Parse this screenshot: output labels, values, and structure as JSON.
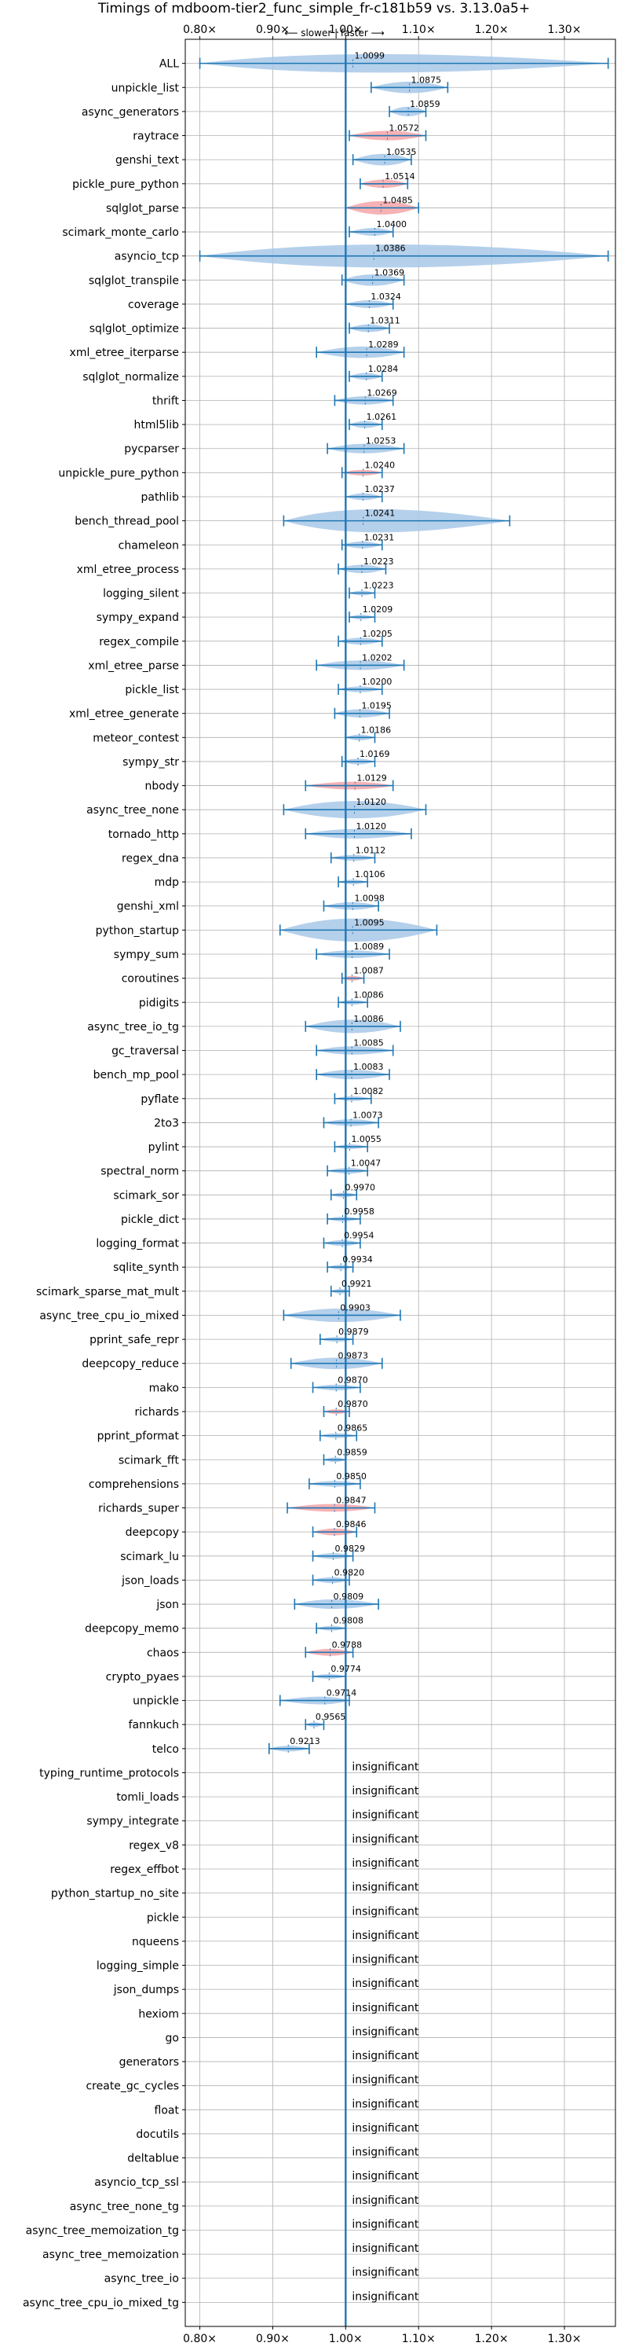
{
  "chart_data": {
    "type": "violin",
    "title": "Timings of mdboom-tier2_func_simple_fr-c181b59 vs. 3.13.0a5+",
    "direction_note": "⟵ slower | faster ⟶",
    "xlim": [
      0.78,
      1.37
    ],
    "x_ticks": [
      0.8,
      0.9,
      1.0,
      1.1,
      1.2,
      1.3
    ],
    "x_tick_labels": [
      "0.80×",
      "0.90×",
      "1.00×",
      "1.10×",
      "1.20×",
      "1.30×"
    ],
    "reference_line": 1.0,
    "grid": true,
    "colors": {
      "faster": "#a8c8e8",
      "slower": "#f4a4a8",
      "line": "#1f77b4",
      "grid": "#b0b0b0"
    },
    "insignificant_text": "insignificant",
    "benchmarks": [
      {
        "name": "ALL",
        "label": "1.0099",
        "value": 1.0099,
        "min": 0.8,
        "max": 1.36,
        "width": 0.048,
        "color": "faster"
      },
      {
        "name": "unpickle_list",
        "label": "1.0875",
        "value": 1.0875,
        "min": 1.035,
        "max": 1.14,
        "width": 0.03,
        "color": "faster"
      },
      {
        "name": "async_generators",
        "label": "1.0859",
        "value": 1.0859,
        "min": 1.06,
        "max": 1.11,
        "width": 0.025,
        "color": "faster"
      },
      {
        "name": "raytrace",
        "label": "1.0572",
        "value": 1.0572,
        "min": 1.005,
        "max": 1.11,
        "width": 0.025,
        "color": "slower"
      },
      {
        "name": "genshi_text",
        "label": "1.0535",
        "value": 1.0535,
        "min": 1.01,
        "max": 1.09,
        "width": 0.03,
        "color": "faster"
      },
      {
        "name": "pickle_pure_python",
        "label": "1.0514",
        "value": 1.0514,
        "min": 1.02,
        "max": 1.085,
        "width": 0.022,
        "color": "slower"
      },
      {
        "name": "sqlglot_parse",
        "label": "1.0485",
        "value": 1.0485,
        "min": 1.0,
        "max": 1.1,
        "width": 0.035,
        "color": "slower"
      },
      {
        "name": "scimark_monte_carlo",
        "label": "1.0400",
        "value": 1.04,
        "min": 1.005,
        "max": 1.065,
        "width": 0.02,
        "color": "faster"
      },
      {
        "name": "asyncio_tcp",
        "label": "1.0386",
        "value": 1.0386,
        "min": 0.8,
        "max": 1.36,
        "width": 0.13,
        "color": "faster"
      },
      {
        "name": "sqlglot_transpile",
        "label": "1.0369",
        "value": 1.0369,
        "min": 0.995,
        "max": 1.08,
        "width": 0.03,
        "color": "faster"
      },
      {
        "name": "coverage",
        "label": "1.0324",
        "value": 1.0324,
        "min": 1.0,
        "max": 1.065,
        "width": 0.02,
        "color": "faster"
      },
      {
        "name": "sqlglot_optimize",
        "label": "1.0311",
        "value": 1.0311,
        "min": 1.005,
        "max": 1.06,
        "width": 0.02,
        "color": "faster"
      },
      {
        "name": "xml_etree_iterparse",
        "label": "1.0289",
        "value": 1.0289,
        "min": 0.96,
        "max": 1.08,
        "width": 0.03,
        "color": "faster"
      },
      {
        "name": "sqlglot_normalize",
        "label": "1.0284",
        "value": 1.0284,
        "min": 1.005,
        "max": 1.05,
        "width": 0.018,
        "color": "faster"
      },
      {
        "name": "thrift",
        "label": "1.0269",
        "value": 1.0269,
        "min": 0.985,
        "max": 1.065,
        "width": 0.022,
        "color": "faster"
      },
      {
        "name": "html5lib",
        "label": "1.0261",
        "value": 1.0261,
        "min": 1.005,
        "max": 1.05,
        "width": 0.018,
        "color": "faster"
      },
      {
        "name": "pycparser",
        "label": "1.0253",
        "value": 1.0253,
        "min": 0.975,
        "max": 1.08,
        "width": 0.025,
        "color": "faster"
      },
      {
        "name": "unpickle_pure_python",
        "label": "1.0240",
        "value": 1.024,
        "min": 0.995,
        "max": 1.05,
        "width": 0.015,
        "color": "slower"
      },
      {
        "name": "pathlib",
        "label": "1.0237",
        "value": 1.0237,
        "min": 1.0,
        "max": 1.05,
        "width": 0.018,
        "color": "faster"
      },
      {
        "name": "bench_thread_pool",
        "label": "1.0241",
        "value": 1.0241,
        "min": 0.915,
        "max": 1.225,
        "width": 0.06,
        "color": "faster"
      },
      {
        "name": "chameleon",
        "label": "1.0231",
        "value": 1.0231,
        "min": 0.995,
        "max": 1.05,
        "width": 0.018,
        "color": "faster"
      },
      {
        "name": "xml_etree_process",
        "label": "1.0223",
        "value": 1.0223,
        "min": 0.99,
        "max": 1.055,
        "width": 0.022,
        "color": "faster"
      },
      {
        "name": "logging_silent",
        "label": "1.0223",
        "value": 1.0223,
        "min": 1.005,
        "max": 1.04,
        "width": 0.012,
        "color": "faster"
      },
      {
        "name": "sympy_expand",
        "label": "1.0209",
        "value": 1.0209,
        "min": 1.005,
        "max": 1.04,
        "width": 0.012,
        "color": "faster"
      },
      {
        "name": "regex_compile",
        "label": "1.0205",
        "value": 1.0205,
        "min": 0.99,
        "max": 1.05,
        "width": 0.018,
        "color": "faster"
      },
      {
        "name": "xml_etree_parse",
        "label": "1.0202",
        "value": 1.0202,
        "min": 0.96,
        "max": 1.08,
        "width": 0.025,
        "color": "faster"
      },
      {
        "name": "pickle_list",
        "label": "1.0200",
        "value": 1.02,
        "min": 0.99,
        "max": 1.05,
        "width": 0.015,
        "color": "faster"
      },
      {
        "name": "xml_etree_generate",
        "label": "1.0195",
        "value": 1.0195,
        "min": 0.985,
        "max": 1.06,
        "width": 0.022,
        "color": "faster"
      },
      {
        "name": "meteor_contest",
        "label": "1.0186",
        "value": 1.0186,
        "min": 1.0,
        "max": 1.04,
        "width": 0.015,
        "color": "faster"
      },
      {
        "name": "sympy_str",
        "label": "1.0169",
        "value": 1.0169,
        "min": 0.995,
        "max": 1.04,
        "width": 0.015,
        "color": "faster"
      },
      {
        "name": "nbody",
        "label": "1.0129",
        "value": 1.0129,
        "min": 0.945,
        "max": 1.065,
        "width": 0.02,
        "color": "slower"
      },
      {
        "name": "async_tree_none",
        "label": "1.0120",
        "value": 1.012,
        "min": 0.915,
        "max": 1.11,
        "width": 0.045,
        "color": "faster"
      },
      {
        "name": "tornado_http",
        "label": "1.0120",
        "value": 1.012,
        "min": 0.945,
        "max": 1.09,
        "width": 0.025,
        "color": "faster"
      },
      {
        "name": "regex_dna",
        "label": "1.0112",
        "value": 1.0112,
        "min": 0.98,
        "max": 1.04,
        "width": 0.015,
        "color": "faster"
      },
      {
        "name": "mdp",
        "label": "1.0106",
        "value": 1.0106,
        "min": 0.99,
        "max": 1.03,
        "width": 0.012,
        "color": "faster"
      },
      {
        "name": "genshi_xml",
        "label": "1.0098",
        "value": 1.0098,
        "min": 0.97,
        "max": 1.045,
        "width": 0.02,
        "color": "faster"
      },
      {
        "name": "python_startup",
        "label": "1.0095",
        "value": 1.0095,
        "min": 0.91,
        "max": 1.125,
        "width": 0.06,
        "color": "faster"
      },
      {
        "name": "sympy_sum",
        "label": "1.0089",
        "value": 1.0089,
        "min": 0.96,
        "max": 1.06,
        "width": 0.02,
        "color": "faster"
      },
      {
        "name": "coroutines",
        "label": "1.0087",
        "value": 1.0087,
        "min": 0.995,
        "max": 1.025,
        "width": 0.012,
        "color": "slower"
      },
      {
        "name": "pidigits",
        "label": "1.0086",
        "value": 1.0086,
        "min": 0.99,
        "max": 1.03,
        "width": 0.012,
        "color": "faster"
      },
      {
        "name": "async_tree_io_tg",
        "label": "1.0086",
        "value": 1.0086,
        "min": 0.945,
        "max": 1.075,
        "width": 0.035,
        "color": "faster"
      },
      {
        "name": "gc_traversal",
        "label": "1.0085",
        "value": 1.0085,
        "min": 0.96,
        "max": 1.065,
        "width": 0.022,
        "color": "faster"
      },
      {
        "name": "bench_mp_pool",
        "label": "1.0083",
        "value": 1.0083,
        "min": 0.96,
        "max": 1.06,
        "width": 0.025,
        "color": "faster"
      },
      {
        "name": "pyflate",
        "label": "1.0082",
        "value": 1.0082,
        "min": 0.985,
        "max": 1.035,
        "width": 0.012,
        "color": "faster"
      },
      {
        "name": "2to3",
        "label": "1.0073",
        "value": 1.0073,
        "min": 0.97,
        "max": 1.045,
        "width": 0.018,
        "color": "faster"
      },
      {
        "name": "pylint",
        "label": "1.0055",
        "value": 1.0055,
        "min": 0.985,
        "max": 1.03,
        "width": 0.012,
        "color": "faster"
      },
      {
        "name": "spectral_norm",
        "label": "1.0047",
        "value": 1.0047,
        "min": 0.975,
        "max": 1.03,
        "width": 0.015,
        "color": "faster"
      },
      {
        "name": "scimark_sor",
        "label": "0.9970",
        "value": 0.997,
        "min": 0.98,
        "max": 1.015,
        "width": 0.01,
        "color": "faster"
      },
      {
        "name": "pickle_dict",
        "label": "0.9958",
        "value": 0.9958,
        "min": 0.975,
        "max": 1.02,
        "width": 0.012,
        "color": "faster"
      },
      {
        "name": "logging_format",
        "label": "0.9954",
        "value": 0.9954,
        "min": 0.97,
        "max": 1.02,
        "width": 0.015,
        "color": "faster"
      },
      {
        "name": "sqlite_synth",
        "label": "0.9934",
        "value": 0.9934,
        "min": 0.975,
        "max": 1.01,
        "width": 0.012,
        "color": "faster"
      },
      {
        "name": "scimark_sparse_mat_mult",
        "label": "0.9921",
        "value": 0.9921,
        "min": 0.98,
        "max": 1.005,
        "width": 0.008,
        "color": "faster"
      },
      {
        "name": "async_tree_cpu_io_mixed",
        "label": "0.9903",
        "value": 0.9903,
        "min": 0.915,
        "max": 1.075,
        "width": 0.035,
        "color": "faster"
      },
      {
        "name": "pprint_safe_repr",
        "label": "0.9879",
        "value": 0.9879,
        "min": 0.965,
        "max": 1.01,
        "width": 0.012,
        "color": "faster"
      },
      {
        "name": "deepcopy_reduce",
        "label": "0.9873",
        "value": 0.9873,
        "min": 0.925,
        "max": 1.05,
        "width": 0.03,
        "color": "faster"
      },
      {
        "name": "mako",
        "label": "0.9870",
        "value": 0.987,
        "min": 0.955,
        "max": 1.02,
        "width": 0.015,
        "color": "faster"
      },
      {
        "name": "richards",
        "label": "0.9870",
        "value": 0.987,
        "min": 0.97,
        "max": 1.005,
        "width": 0.01,
        "color": "slower"
      },
      {
        "name": "pprint_pformat",
        "label": "0.9865",
        "value": 0.9865,
        "min": 0.965,
        "max": 1.015,
        "width": 0.012,
        "color": "faster"
      },
      {
        "name": "scimark_fft",
        "label": "0.9859",
        "value": 0.9859,
        "min": 0.97,
        "max": 1.0,
        "width": 0.01,
        "color": "faster"
      },
      {
        "name": "comprehensions",
        "label": "0.9850",
        "value": 0.985,
        "min": 0.95,
        "max": 1.02,
        "width": 0.015,
        "color": "faster"
      },
      {
        "name": "richards_super",
        "label": "0.9847",
        "value": 0.9847,
        "min": 0.92,
        "max": 1.04,
        "width": 0.02,
        "color": "slower"
      },
      {
        "name": "deepcopy",
        "label": "0.9846",
        "value": 0.9846,
        "min": 0.955,
        "max": 1.015,
        "width": 0.018,
        "color": "slower"
      },
      {
        "name": "scimark_lu",
        "label": "0.9829",
        "value": 0.9829,
        "min": 0.955,
        "max": 1.01,
        "width": 0.015,
        "color": "faster"
      },
      {
        "name": "json_loads",
        "label": "0.9820",
        "value": 0.982,
        "min": 0.955,
        "max": 1.005,
        "width": 0.015,
        "color": "faster"
      },
      {
        "name": "json",
        "label": "0.9809",
        "value": 0.9809,
        "min": 0.93,
        "max": 1.045,
        "width": 0.025,
        "color": "faster"
      },
      {
        "name": "deepcopy_memo",
        "label": "0.9808",
        "value": 0.9808,
        "min": 0.96,
        "max": 1.0,
        "width": 0.012,
        "color": "faster"
      },
      {
        "name": "chaos",
        "label": "0.9788",
        "value": 0.9788,
        "min": 0.945,
        "max": 1.01,
        "width": 0.018,
        "color": "slower"
      },
      {
        "name": "crypto_pyaes",
        "label": "0.9774",
        "value": 0.9774,
        "min": 0.955,
        "max": 1.0,
        "width": 0.012,
        "color": "faster"
      },
      {
        "name": "unpickle",
        "label": "0.9714",
        "value": 0.9714,
        "min": 0.91,
        "max": 1.005,
        "width": 0.02,
        "color": "faster"
      },
      {
        "name": "fannkuch",
        "label": "0.9565",
        "value": 0.9565,
        "min": 0.945,
        "max": 0.97,
        "width": 0.01,
        "color": "faster"
      },
      {
        "name": "telco",
        "label": "0.9213",
        "value": 0.9213,
        "min": 0.895,
        "max": 0.95,
        "width": 0.015,
        "color": "faster"
      },
      {
        "name": "typing_runtime_protocols",
        "label": "insignificant",
        "insignificant": true
      },
      {
        "name": "tomli_loads",
        "label": "insignificant",
        "insignificant": true
      },
      {
        "name": "sympy_integrate",
        "label": "insignificant",
        "insignificant": true
      },
      {
        "name": "regex_v8",
        "label": "insignificant",
        "insignificant": true
      },
      {
        "name": "regex_effbot",
        "label": "insignificant",
        "insignificant": true
      },
      {
        "name": "python_startup_no_site",
        "label": "insignificant",
        "insignificant": true
      },
      {
        "name": "pickle",
        "label": "insignificant",
        "insignificant": true
      },
      {
        "name": "nqueens",
        "label": "insignificant",
        "insignificant": true
      },
      {
        "name": "logging_simple",
        "label": "insignificant",
        "insignificant": true
      },
      {
        "name": "json_dumps",
        "label": "insignificant",
        "insignificant": true
      },
      {
        "name": "hexiom",
        "label": "insignificant",
        "insignificant": true
      },
      {
        "name": "go",
        "label": "insignificant",
        "insignificant": true
      },
      {
        "name": "generators",
        "label": "insignificant",
        "insignificant": true
      },
      {
        "name": "create_gc_cycles",
        "label": "insignificant",
        "insignificant": true
      },
      {
        "name": "float",
        "label": "insignificant",
        "insignificant": true
      },
      {
        "name": "docutils",
        "label": "insignificant",
        "insignificant": true
      },
      {
        "name": "deltablue",
        "label": "insignificant",
        "insignificant": true
      },
      {
        "name": "asyncio_tcp_ssl",
        "label": "insignificant",
        "insignificant": true
      },
      {
        "name": "async_tree_none_tg",
        "label": "insignificant",
        "insignificant": true
      },
      {
        "name": "async_tree_memoization_tg",
        "label": "insignificant",
        "insignificant": true
      },
      {
        "name": "async_tree_memoization",
        "label": "insignificant",
        "insignificant": true
      },
      {
        "name": "async_tree_io",
        "label": "insignificant",
        "insignificant": true
      },
      {
        "name": "async_tree_cpu_io_mixed_tg",
        "label": "insignificant",
        "insignificant": true
      }
    ]
  }
}
